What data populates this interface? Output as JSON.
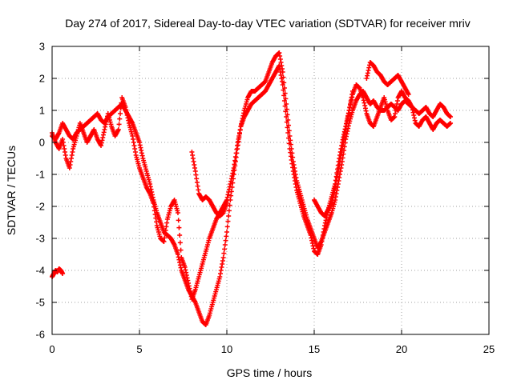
{
  "chart_data": {
    "type": "scatter",
    "title": "Day 274 of 2017, Sidereal Day-to-day VTEC variation (SDTVAR) for receiver mriv",
    "xlabel": "GPS time / hours",
    "ylabel": "SDTVAR / TECUs",
    "xlim": [
      0,
      25
    ],
    "ylim": [
      -6,
      3
    ],
    "xticks": [
      "0",
      "5",
      "10",
      "15",
      "20",
      "25"
    ],
    "yticks": [
      "-6",
      "-5",
      "-4",
      "-3",
      "-2",
      "-1",
      "0",
      "1",
      "2",
      "3"
    ],
    "grid": true,
    "marker": "plus",
    "color": "#ff0000",
    "series": [
      {
        "name": "SDTVAR",
        "tracks": [
          {
            "x": [
              0.0,
              0.2,
              0.4,
              0.6,
              0.8,
              1.0,
              1.2,
              1.4,
              1.6,
              1.8,
              2.0,
              2.2,
              2.4,
              2.6,
              2.8,
              3.0,
              3.2,
              3.4,
              3.6,
              3.8,
              4.0,
              4.2,
              4.4,
              4.6,
              4.8,
              5.0,
              5.2,
              5.4,
              5.6,
              5.8,
              6.0,
              6.2,
              6.4,
              6.6,
              6.8,
              7.0,
              7.2,
              7.4,
              7.6,
              7.8,
              8.0,
              8.2,
              8.4,
              8.6,
              8.8,
              9.0,
              9.2,
              9.4,
              9.6,
              9.8,
              10.0,
              10.2,
              10.4,
              10.6,
              10.8,
              11.0,
              11.2,
              11.4,
              11.6,
              11.8,
              12.0,
              12.2,
              12.4,
              12.6,
              12.8,
              13.0,
              13.2,
              13.4,
              13.6,
              13.8,
              14.0,
              14.2,
              14.4,
              14.6,
              14.8,
              15.0,
              15.2,
              15.4,
              15.6,
              15.8,
              16.0,
              16.2,
              16.4,
              16.6,
              16.8,
              17.0,
              17.2,
              17.4,
              17.6,
              17.8,
              18.0,
              18.2,
              18.4,
              18.6,
              18.8,
              19.0,
              19.2,
              19.4,
              19.6,
              19.8,
              20.0,
              20.2,
              20.4,
              20.6,
              20.8,
              21.0,
              21.2,
              21.4,
              21.6,
              21.8,
              22.0,
              22.2,
              22.4,
              22.6,
              22.8
            ],
            "y": [
              0.2,
              0.1,
              0.3,
              0.6,
              0.4,
              0.2,
              0.1,
              0.3,
              0.4,
              0.5,
              0.6,
              0.7,
              0.8,
              0.9,
              0.7,
              0.6,
              0.8,
              0.9,
              1.0,
              1.1,
              1.2,
              1.0,
              0.8,
              0.6,
              0.3,
              0.0,
              -0.5,
              -0.9,
              -1.3,
              -1.8,
              -2.2,
              -2.5,
              -2.8,
              -2.9,
              -3.0,
              -3.2,
              -3.5,
              -4.0,
              -4.3,
              -4.6,
              -4.8,
              -5.0,
              -5.3,
              -5.6,
              -5.7,
              -5.4,
              -5.0,
              -4.6,
              -4.2,
              -3.6,
              -2.8,
              -1.8,
              -1.0,
              -0.2,
              0.5,
              1.0,
              1.4,
              1.6,
              1.6,
              1.7,
              1.8,
              1.9,
              2.2,
              2.5,
              2.7,
              2.8,
              2.2,
              1.2,
              0.2,
              -0.6,
              -1.2,
              -1.6,
              -2.0,
              -2.4,
              -2.7,
              -3.0,
              -3.3,
              -3.1,
              -2.8,
              -2.5,
              -2.2,
              -1.8,
              -1.2,
              -0.6,
              0.1,
              0.6,
              1.0,
              1.3,
              1.5,
              1.6,
              1.4,
              1.2,
              1.3,
              1.1,
              1.0,
              1.0,
              1.1,
              1.2,
              1.1,
              1.0,
              1.2,
              1.3,
              1.2,
              1.1,
              1.0,
              0.9,
              1.0,
              1.1,
              0.9,
              0.8,
              1.0,
              1.2,
              1.1,
              0.9,
              0.8
            ]
          },
          {
            "x": [
              0.0,
              0.2,
              0.4,
              0.6,
              0.8,
              1.0,
              1.2,
              1.4,
              1.6,
              1.8,
              2.0,
              2.2,
              2.4,
              2.6,
              2.8,
              3.0,
              3.2,
              3.4,
              3.6,
              3.8,
              4.0,
              4.2,
              4.4,
              4.6,
              4.8,
              5.0,
              5.2,
              5.4,
              5.6,
              5.8,
              6.0,
              6.2,
              6.4,
              6.6,
              6.8,
              7.0,
              7.2,
              7.4,
              7.6,
              7.8,
              8.0,
              8.2,
              8.4,
              8.6,
              8.8,
              9.0,
              9.2,
              9.4,
              9.6,
              9.8,
              10.0,
              10.2,
              10.4,
              10.6,
              10.8,
              11.0,
              11.2,
              11.4,
              11.6,
              11.8,
              12.0,
              12.2,
              12.4,
              12.6,
              12.8,
              13.0,
              13.2,
              13.4,
              13.6,
              13.8,
              14.0,
              14.2,
              14.4,
              14.6,
              14.8,
              15.0,
              15.2,
              15.4,
              15.6,
              15.8,
              16.0,
              16.2,
              16.4,
              16.6,
              16.8,
              17.0,
              17.2,
              17.4,
              17.6,
              17.8,
              18.0,
              18.2,
              18.4,
              18.6,
              18.8,
              19.0,
              19.2,
              19.4,
              19.6,
              19.8,
              20.0,
              20.2,
              20.4,
              20.6,
              20.8,
              21.0,
              21.2,
              21.4,
              21.6,
              21.8,
              22.0,
              22.2,
              22.4,
              22.6,
              22.8
            ],
            "y": [
              0.3,
              0.0,
              -0.2,
              0.1,
              -0.5,
              -0.8,
              -0.2,
              0.2,
              0.6,
              0.3,
              0.0,
              0.2,
              0.4,
              0.1,
              -0.1,
              0.4,
              0.9,
              0.5,
              0.2,
              0.4,
              1.4,
              1.1,
              0.6,
              0.2,
              -0.4,
              -0.8,
              -1.1,
              -1.4,
              -1.6,
              -1.9,
              -2.6,
              -3.0,
              -3.1,
              -2.4,
              -2.0,
              -1.8,
              -2.2,
              -3.6,
              -3.9,
              -4.4,
              -4.9,
              -4.6,
              -4.2,
              -3.8,
              -3.4,
              -3.0,
              -2.7,
              -2.4,
              -2.2,
              -2.0,
              -1.8,
              -1.3,
              -0.8,
              -0.1,
              0.5,
              0.8,
              1.0,
              1.2,
              1.3,
              1.4,
              1.5,
              1.6,
              1.8,
              2.0,
              2.2,
              2.4,
              1.8,
              0.8,
              -0.2,
              -0.9,
              -1.5,
              -1.9,
              -2.3,
              -2.6,
              -2.9,
              -3.4,
              -3.5,
              -3.2,
              -2.6,
              -2.1,
              -1.7,
              -1.3,
              -0.6,
              0.0,
              0.5,
              1.0,
              1.5,
              1.8,
              1.7,
              1.4,
              0.9,
              0.6,
              0.5,
              0.8,
              1.1,
              1.4,
              1.0,
              0.7,
              0.8,
              1.4,
              1.6,
              1.4,
              1.3,
              1.1,
              0.6,
              0.5,
              0.7,
              0.8,
              0.6,
              0.4,
              0.6,
              0.7,
              0.6,
              0.5,
              0.6
            ]
          },
          {
            "x": [
              0.0,
              0.1,
              0.2,
              0.3,
              0.4,
              0.5,
              0.6
            ],
            "y": [
              -4.2,
              -4.1,
              -4.0,
              -4.05,
              -3.95,
              -4.0,
              -4.1
            ]
          },
          {
            "x": [
              8.0,
              8.2,
              8.4,
              8.6,
              8.8,
              9.0,
              9.2,
              9.4,
              9.6,
              9.8,
              10.0
            ],
            "y": [
              -0.3,
              -0.9,
              -1.6,
              -1.8,
              -1.7,
              -1.8,
              -2.0,
              -2.2,
              -2.3,
              -2.2,
              -1.9
            ]
          },
          {
            "x": [
              15.0,
              15.2,
              15.4,
              15.6,
              15.8,
              16.0,
              16.2,
              16.4,
              16.6,
              16.8,
              17.0,
              17.2
            ],
            "y": [
              -1.8,
              -2.0,
              -2.2,
              -2.3,
              -2.1,
              -1.9,
              -1.4,
              -0.8,
              -0.2,
              0.4,
              1.0,
              1.6
            ]
          },
          {
            "x": [
              18.0,
              18.2,
              18.4,
              18.6,
              18.8,
              19.0,
              19.2,
              19.4,
              19.6,
              19.8,
              20.0,
              20.2,
              20.4
            ],
            "y": [
              2.0,
              2.5,
              2.4,
              2.2,
              2.1,
              1.9,
              1.8,
              1.9,
              2.0,
              2.1,
              1.9,
              1.7,
              1.5
            ]
          }
        ]
      }
    ]
  }
}
